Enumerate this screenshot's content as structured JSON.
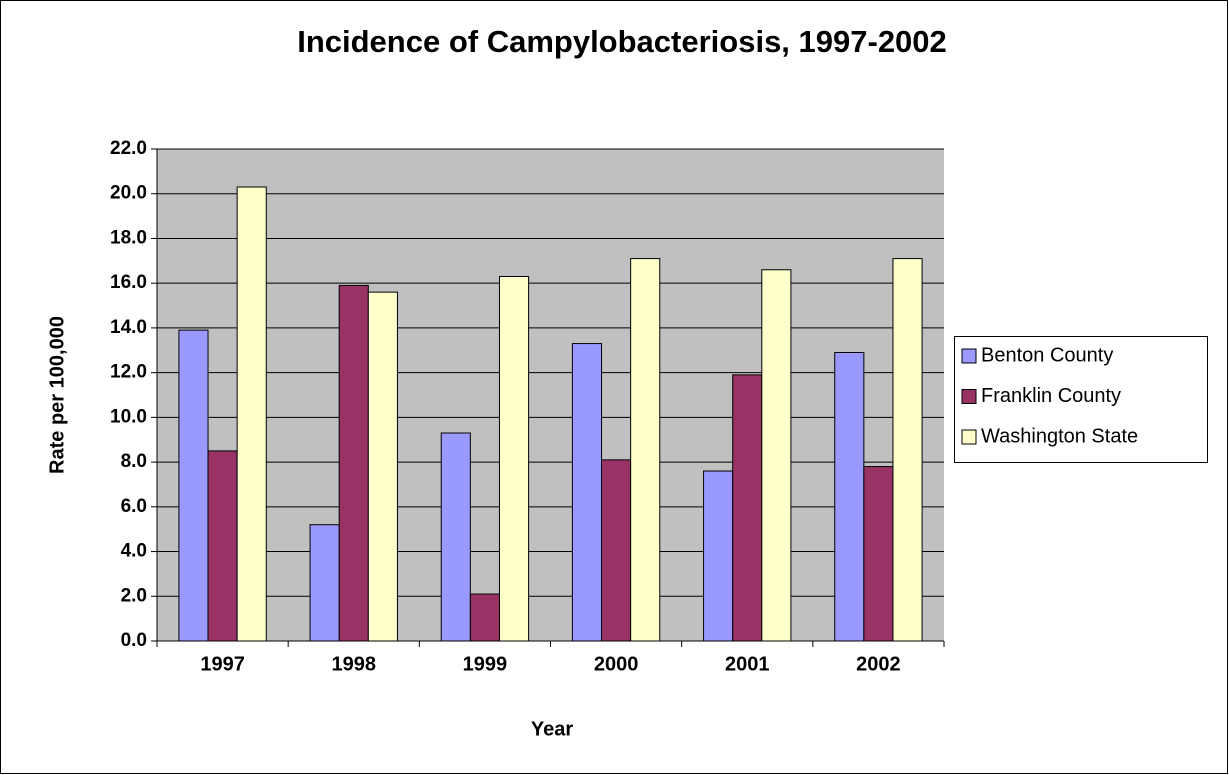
{
  "chart_data": {
    "type": "bar",
    "title": "Incidence of Campylobacteriosis, 1997-2002",
    "x_label": "Year",
    "y_label": "Rate per 100,000",
    "categories": [
      "1997",
      "1998",
      "1999",
      "2000",
      "2001",
      "2002"
    ],
    "series": [
      {
        "name": "Benton County",
        "color": "#9999ff",
        "values": [
          13.9,
          5.2,
          9.3,
          13.3,
          7.6,
          12.9
        ]
      },
      {
        "name": "Franklin County",
        "color": "#993366",
        "values": [
          8.5,
          15.9,
          2.1,
          8.1,
          11.9,
          7.8
        ]
      },
      {
        "name": "Washington State",
        "color": "#ffffcc",
        "values": [
          20.3,
          15.6,
          16.3,
          17.1,
          16.6,
          17.1
        ]
      }
    ],
    "ylim": [
      0,
      22
    ],
    "yticks": [
      {
        "value": 0,
        "label": "0.0"
      },
      {
        "value": 2,
        "label": "2.0"
      },
      {
        "value": 4,
        "label": "4.0"
      },
      {
        "value": 6,
        "label": "6.0"
      },
      {
        "value": 8,
        "label": "8.0"
      },
      {
        "value": 10,
        "label": "10.0"
      },
      {
        "value": 12,
        "label": "12.0"
      },
      {
        "value": 14,
        "label": "14.0"
      },
      {
        "value": 16,
        "label": "16.0"
      },
      {
        "value": 18,
        "label": "18.0"
      },
      {
        "value": 20,
        "label": "20.0"
      },
      {
        "value": 22,
        "label": "22.0"
      }
    ],
    "grid": true,
    "legend": "right",
    "plot_background": "#c0c0c0"
  }
}
